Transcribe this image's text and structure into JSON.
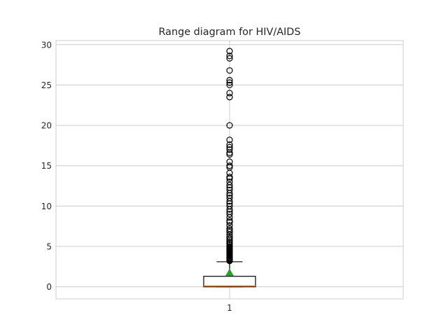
{
  "chart_data": {
    "type": "box",
    "title": "Range diagram for HIV/AIDS",
    "xlabel": "",
    "ylabel": "",
    "categories": [
      "1"
    ],
    "ylim": [
      -1.5,
      30.5
    ],
    "yticks": [
      0,
      5,
      10,
      15,
      20,
      25,
      30
    ],
    "grid": true,
    "series": [
      {
        "whisker_low": 0.0,
        "q1": 0.0,
        "median": 0.1,
        "q3": 1.3,
        "whisker_high": 3.1,
        "mean": 1.75,
        "outliers": [
          3.2,
          3.3,
          3.4,
          3.5,
          3.6,
          3.7,
          3.8,
          3.9,
          4.0,
          4.1,
          4.2,
          4.3,
          4.4,
          4.5,
          4.6,
          4.7,
          4.8,
          4.9,
          5.0,
          5.2,
          5.4,
          5.6,
          5.8,
          6.0,
          6.2,
          6.5,
          6.8,
          7.0,
          7.2,
          7.6,
          8.0,
          8.2,
          8.6,
          9.0,
          9.3,
          9.6,
          10.0,
          10.3,
          10.6,
          11.0,
          11.3,
          11.6,
          12.0,
          12.3,
          12.6,
          13.0,
          13.4,
          13.6,
          14.1,
          14.8,
          15.0,
          15.5,
          16.4,
          16.6,
          17.0,
          17.3,
          17.6,
          18.2,
          20.0,
          23.5,
          24.0,
          25.0,
          25.3,
          25.6,
          26.8,
          28.3,
          28.6,
          29.2
        ]
      }
    ]
  },
  "colors": {
    "median": "#ff7f0e",
    "mean_marker": "#2ca02c",
    "grid": "#cccccc",
    "axes_edge": "#cccccc",
    "box": "#000000"
  }
}
